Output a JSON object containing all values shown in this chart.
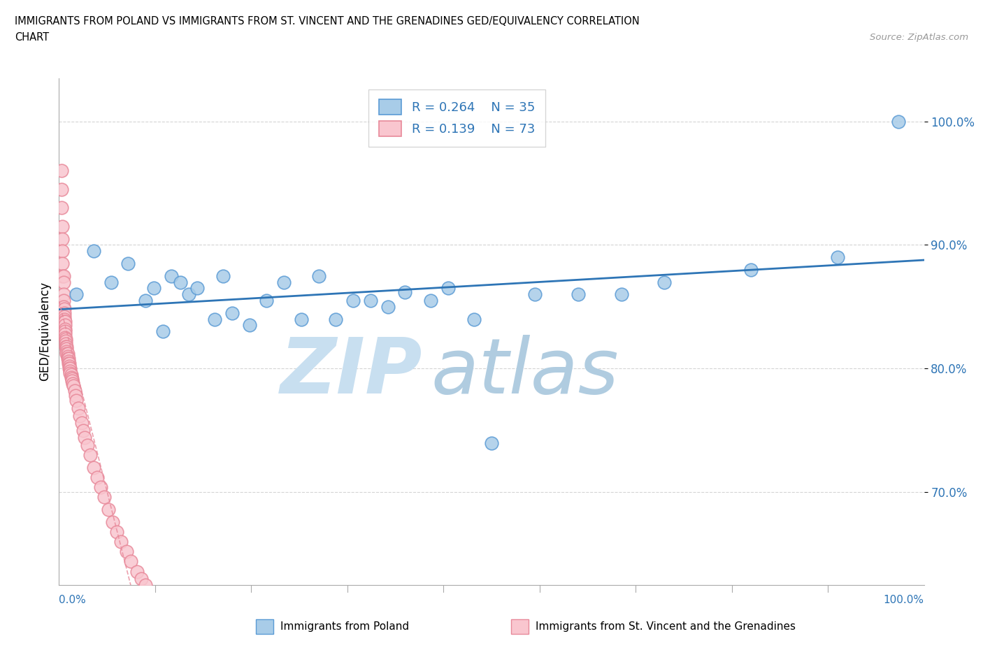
{
  "title_line1": "IMMIGRANTS FROM POLAND VS IMMIGRANTS FROM ST. VINCENT AND THE GRENADINES GED/EQUIVALENCY CORRELATION",
  "title_line2": "CHART",
  "source_text": "Source: ZipAtlas.com",
  "watermark_zip": "ZIP",
  "watermark_atlas": "atlas",
  "ylabel": "GED/Equivalency",
  "y_tick_values": [
    0.7,
    0.8,
    0.9,
    1.0
  ],
  "xlim": [
    0.0,
    1.0
  ],
  "ylim": [
    0.625,
    1.035
  ],
  "legend_r1": "0.264",
  "legend_n1": "35",
  "legend_r2": "0.139",
  "legend_n2": "73",
  "color_blue_fill": "#a8cce8",
  "color_blue_edge": "#5b9bd5",
  "color_pink_fill": "#f9c6cf",
  "color_pink_edge": "#e8899a",
  "color_blue_line": "#2e75b6",
  "color_pink_line": "#e8899a",
  "color_text_blue": "#2e75b6",
  "color_watermark_zip": "#c8dff0",
  "color_watermark_atlas": "#b0cce0",
  "background_color": "#ffffff",
  "grid_color": "#d0d0d0",
  "poland_x": [
    0.02,
    0.04,
    0.06,
    0.08,
    0.1,
    0.11,
    0.12,
    0.13,
    0.14,
    0.15,
    0.16,
    0.18,
    0.19,
    0.2,
    0.22,
    0.24,
    0.26,
    0.28,
    0.3,
    0.32,
    0.34,
    0.36,
    0.38,
    0.4,
    0.43,
    0.45,
    0.48,
    0.5,
    0.55,
    0.6,
    0.65,
    0.7,
    0.8,
    0.9,
    0.97
  ],
  "poland_y": [
    0.86,
    0.895,
    0.87,
    0.885,
    0.855,
    0.865,
    0.83,
    0.875,
    0.87,
    0.86,
    0.865,
    0.84,
    0.875,
    0.845,
    0.835,
    0.855,
    0.87,
    0.84,
    0.875,
    0.84,
    0.855,
    0.855,
    0.85,
    0.862,
    0.855,
    0.865,
    0.84,
    0.74,
    0.86,
    0.86,
    0.86,
    0.87,
    0.88,
    0.89,
    1.0
  ],
  "stvincent_x": [
    0.003,
    0.003,
    0.003,
    0.004,
    0.004,
    0.004,
    0.004,
    0.004,
    0.005,
    0.005,
    0.005,
    0.005,
    0.005,
    0.006,
    0.006,
    0.006,
    0.006,
    0.006,
    0.007,
    0.007,
    0.007,
    0.007,
    0.007,
    0.007,
    0.008,
    0.008,
    0.008,
    0.008,
    0.009,
    0.009,
    0.009,
    0.009,
    0.01,
    0.01,
    0.01,
    0.011,
    0.011,
    0.011,
    0.012,
    0.012,
    0.012,
    0.013,
    0.013,
    0.013,
    0.014,
    0.014,
    0.015,
    0.015,
    0.016,
    0.017,
    0.018,
    0.019,
    0.02,
    0.022,
    0.024,
    0.026,
    0.028,
    0.03,
    0.033,
    0.036,
    0.04,
    0.044,
    0.048,
    0.052,
    0.057,
    0.062,
    0.067,
    0.072,
    0.078,
    0.083,
    0.09,
    0.095,
    0.1
  ],
  "stvincent_y": [
    0.96,
    0.945,
    0.93,
    0.915,
    0.905,
    0.895,
    0.885,
    0.875,
    0.875,
    0.87,
    0.86,
    0.855,
    0.85,
    0.848,
    0.845,
    0.842,
    0.84,
    0.838,
    0.838,
    0.835,
    0.832,
    0.83,
    0.828,
    0.825,
    0.824,
    0.822,
    0.82,
    0.818,
    0.818,
    0.816,
    0.814,
    0.812,
    0.812,
    0.81,
    0.808,
    0.808,
    0.806,
    0.804,
    0.804,
    0.802,
    0.8,
    0.8,
    0.798,
    0.796,
    0.795,
    0.793,
    0.792,
    0.79,
    0.788,
    0.786,
    0.782,
    0.778,
    0.774,
    0.768,
    0.762,
    0.756,
    0.75,
    0.744,
    0.738,
    0.73,
    0.72,
    0.712,
    0.704,
    0.696,
    0.686,
    0.676,
    0.668,
    0.66,
    0.652,
    0.644,
    0.636,
    0.63,
    0.625
  ]
}
